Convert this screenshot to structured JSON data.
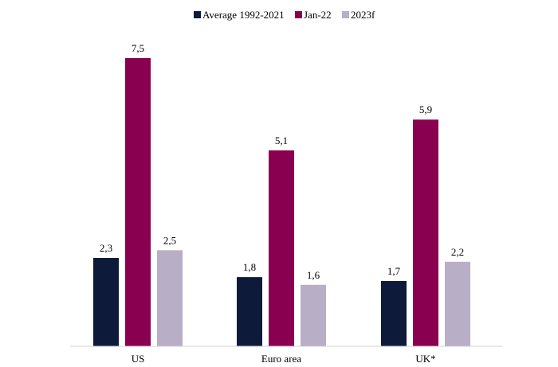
{
  "chart_data": {
    "type": "bar",
    "categories": [
      "US",
      "Euro area",
      "UK*"
    ],
    "series": [
      {
        "name": "Average 1992-2021",
        "values": [
          2.3,
          1.8,
          1.7
        ],
        "labels": [
          "2,3",
          "1,8",
          "1,7"
        ],
        "color": "#0e1a3a"
      },
      {
        "name": "Jan-22",
        "values": [
          7.5,
          5.1,
          5.9
        ],
        "labels": [
          "7,5",
          "5,1",
          "5,9"
        ],
        "color": "#8a0050"
      },
      {
        "name": "2023f",
        "values": [
          2.5,
          1.6,
          2.2
        ],
        "labels": [
          "2,5",
          "1,6",
          "2,2"
        ],
        "color": "#b8aec5"
      }
    ],
    "title": "",
    "xlabel": "",
    "ylabel": "",
    "ylim": [
      0,
      8
    ],
    "grid": false,
    "legend_position": "top-center"
  }
}
